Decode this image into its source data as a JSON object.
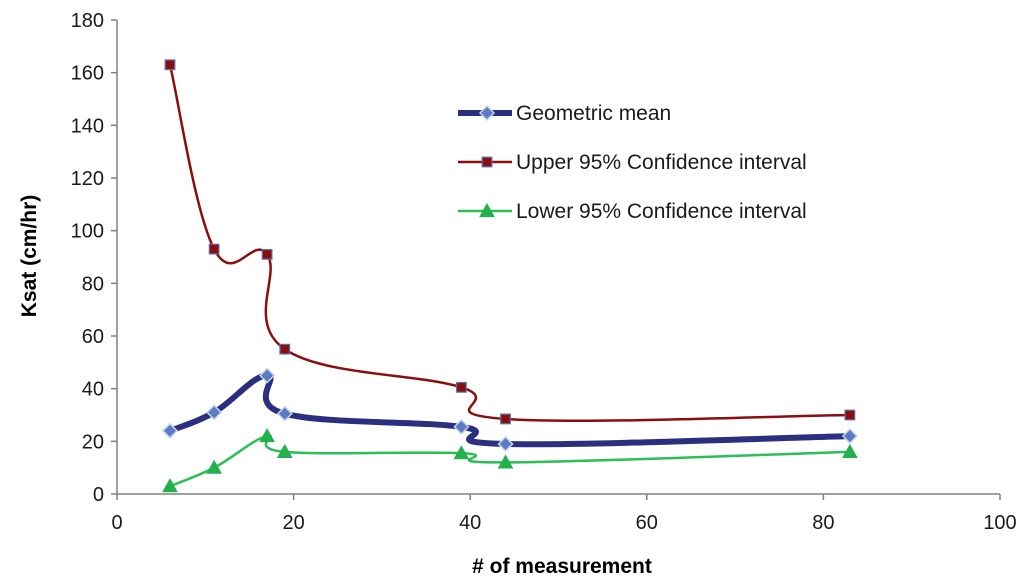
{
  "chart_data": {
    "type": "line",
    "title": "",
    "xlabel": "# of measurement",
    "ylabel": "Ksat (cm/hr)",
    "xlim": [
      0,
      100
    ],
    "ylim": [
      0,
      180
    ],
    "xticks": [
      0,
      20,
      40,
      60,
      80,
      100
    ],
    "yticks": [
      0,
      20,
      40,
      60,
      80,
      100,
      120,
      140,
      160,
      180
    ],
    "grid": false,
    "legend_position": "top-right",
    "x": [
      6,
      11,
      17,
      19,
      39,
      44,
      83
    ],
    "series": [
      {
        "name": "Geometric mean",
        "values": [
          24,
          31,
          45,
          30.5,
          25.5,
          19,
          22
        ],
        "color": "#2b2f7f",
        "marker": "diamond",
        "marker_color": "#4a6fb5"
      },
      {
        "name": "Upper 95% Confidence interval",
        "values": [
          163,
          93,
          91,
          55,
          40.5,
          28.5,
          30
        ],
        "color": "#8b0d0d",
        "marker": "square",
        "marker_color": "#8b0d0d"
      },
      {
        "name": "Lower 95% Confidence interval",
        "values": [
          3,
          10,
          22,
          16,
          15.5,
          12,
          16
        ],
        "color": "#2bbf55",
        "marker": "triangle",
        "marker_color": "#22b14c"
      }
    ]
  }
}
